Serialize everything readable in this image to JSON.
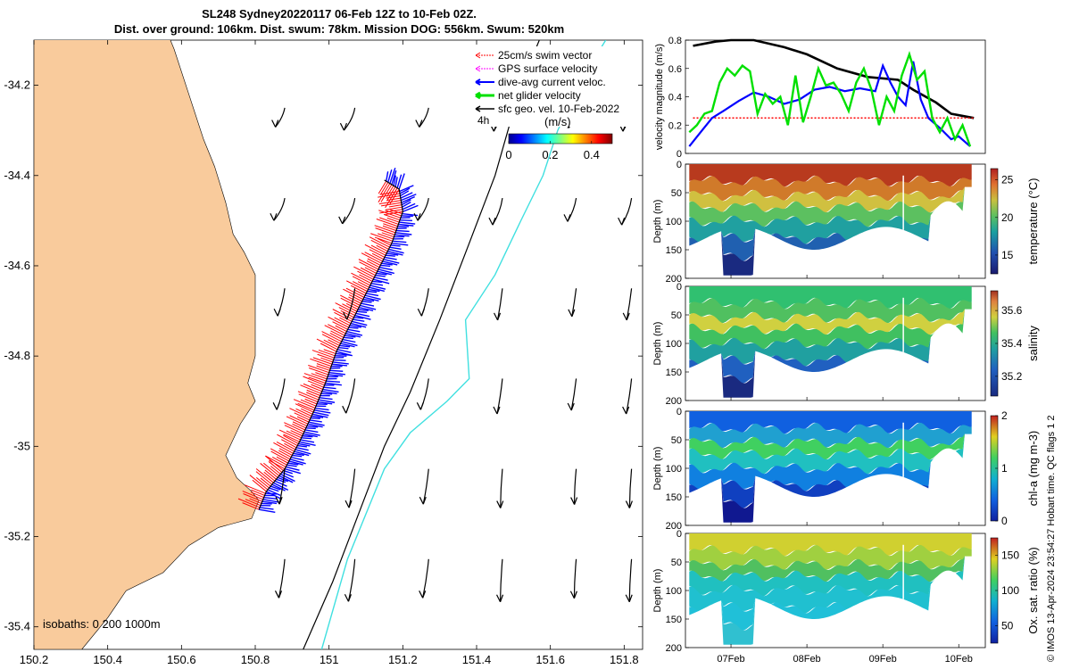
{
  "title_line1": "SL248 Sydney20220117 06-Feb 12Z to 10-Feb 02Z.",
  "title_line2": "Dist. over ground: 106km. Dist. swum: 78km. Mission DOG: 556km. Swum: 520km",
  "side_note": "© IMOS 13-Apr-2024 23:54:27 Hobart time. QC flags 1  2",
  "colors": {
    "land": "#F9CB9C",
    "red": "#FF0000",
    "blue": "#0000FF",
    "green": "#00E000",
    "magenta": "#FF00FF",
    "black": "#000000",
    "cyan": "#40E0E0"
  },
  "chart_data": [
    {
      "type": "scatter",
      "name": "map",
      "xlim": [
        150.2,
        151.85
      ],
      "ylim": [
        -35.45,
        -34.1
      ],
      "x_ticks": [
        "150.2",
        "150.4",
        "150.6",
        "150.8",
        "151",
        "151.2",
        "151.4",
        "151.6",
        "151.8"
      ],
      "x_tick_values": [
        150.2,
        150.4,
        150.6,
        150.8,
        151,
        151.2,
        151.4,
        151.6,
        151.8
      ],
      "y_ticks": [
        "-34.2",
        "-34.4",
        "-34.6",
        "-34.8",
        "-35",
        "-35.2",
        "-35.4"
      ],
      "y_tick_values": [
        -34.2,
        -34.4,
        -34.6,
        -34.8,
        -35,
        -35.2,
        -35.4
      ],
      "legend": {
        "position": "top-right",
        "items": [
          "25cm/s swim vector",
          "GPS surface velocity",
          "dive-avg current veloc.",
          "net glider velocity",
          "sfc geo. vel. 10-Feb-2022"
        ],
        "scale_label": "4h"
      },
      "colorbar": {
        "label": "(m/s)",
        "ticks": [
          "0",
          "0.2",
          "0.4"
        ],
        "tick_values": [
          0,
          0.2,
          0.4
        ],
        "range": [
          0,
          0.5
        ]
      },
      "isobaths_label": "isobaths: 0   200  1000m",
      "glider_track": [
        [
          150.81,
          -35.14
        ],
        [
          150.83,
          -35.1
        ],
        [
          150.88,
          -35.05
        ],
        [
          150.92,
          -34.99
        ],
        [
          150.96,
          -34.92
        ],
        [
          150.99,
          -34.86
        ],
        [
          151.02,
          -34.79
        ],
        [
          151.07,
          -34.71
        ],
        [
          151.12,
          -34.63
        ],
        [
          151.17,
          -34.55
        ],
        [
          151.2,
          -34.48
        ],
        [
          151.19,
          -34.43
        ],
        [
          151.15,
          -34.41
        ]
      ],
      "coastline": [
        [
          150.2,
          -34.06
        ],
        [
          150.55,
          -34.06
        ],
        [
          150.58,
          -34.12
        ],
        [
          150.62,
          -34.22
        ],
        [
          150.66,
          -34.32
        ],
        [
          150.69,
          -34.38
        ],
        [
          150.72,
          -34.46
        ],
        [
          150.74,
          -34.53
        ],
        [
          150.77,
          -34.57
        ],
        [
          150.8,
          -34.62
        ],
        [
          150.8,
          -34.72
        ],
        [
          150.8,
          -34.8
        ],
        [
          150.78,
          -34.86
        ],
        [
          150.8,
          -34.9
        ],
        [
          150.76,
          -34.95
        ],
        [
          150.72,
          -35.02
        ],
        [
          150.75,
          -35.07
        ],
        [
          150.79,
          -35.1
        ],
        [
          150.81,
          -35.12
        ],
        [
          150.79,
          -35.16
        ],
        [
          150.7,
          -35.18
        ],
        [
          150.62,
          -35.22
        ],
        [
          150.55,
          -35.28
        ],
        [
          150.45,
          -35.32
        ],
        [
          150.4,
          -35.38
        ],
        [
          150.33,
          -35.45
        ],
        [
          150.2,
          -35.45
        ]
      ],
      "isobath_200": [
        [
          150.93,
          -35.45
        ],
        [
          151.01,
          -35.3
        ],
        [
          151.08,
          -35.15
        ],
        [
          151.15,
          -35.0
        ],
        [
          151.22,
          -34.88
        ],
        [
          151.3,
          -34.72
        ],
        [
          151.38,
          -34.55
        ],
        [
          151.45,
          -34.4
        ],
        [
          151.52,
          -34.2
        ],
        [
          151.57,
          -34.1
        ]
      ],
      "isobath_1000": [
        [
          150.98,
          -35.45
        ],
        [
          151.05,
          -35.25
        ],
        [
          151.15,
          -35.05
        ],
        [
          151.22,
          -34.97
        ],
        [
          151.32,
          -34.9
        ],
        [
          151.38,
          -34.85
        ],
        [
          151.37,
          -34.72
        ],
        [
          151.45,
          -34.62
        ],
        [
          151.52,
          -34.5
        ],
        [
          151.58,
          -34.4
        ],
        [
          151.62,
          -34.3
        ],
        [
          151.69,
          -34.18
        ],
        [
          151.75,
          -34.1
        ]
      ],
      "current_arrows_grid_x": [
        150.88,
        151.07,
        151.27,
        151.47,
        151.67,
        151.82
      ],
      "current_arrows_grid_y": [
        -34.25,
        -34.45,
        -34.65,
        -34.85,
        -35.05,
        -35.25
      ]
    },
    {
      "type": "line",
      "name": "velocity-magnitude",
      "ylabel": "velocity magnitude (m/s)",
      "ylim": [
        0,
        0.8
      ],
      "y_ticks": [
        "0",
        "0.2",
        "0.4",
        "0.6",
        "0.8"
      ],
      "y_tick_values": [
        0,
        0.2,
        0.4,
        0.6,
        0.8
      ],
      "xlim": [
        6.4,
        10.35
      ],
      "series": [
        {
          "color": "black",
          "values": [
            [
              6.5,
              0.76
            ],
            [
              6.8,
              0.79
            ],
            [
              7.0,
              0.8
            ],
            [
              7.3,
              0.8
            ],
            [
              7.7,
              0.75
            ],
            [
              8.0,
              0.7
            ],
            [
              8.4,
              0.6
            ],
            [
              8.8,
              0.54
            ],
            [
              9.2,
              0.52
            ],
            [
              9.4,
              0.45
            ],
            [
              9.7,
              0.36
            ],
            [
              9.9,
              0.28
            ],
            [
              10.2,
              0.25
            ]
          ]
        },
        {
          "color": "red",
          "values": [
            [
              6.5,
              0.25
            ],
            [
              10.2,
              0.25
            ]
          ]
        },
        {
          "color": "blue",
          "values": [
            [
              6.45,
              0.05
            ],
            [
              6.6,
              0.15
            ],
            [
              6.75,
              0.25
            ],
            [
              6.9,
              0.3
            ],
            [
              7.1,
              0.37
            ],
            [
              7.3,
              0.43
            ],
            [
              7.5,
              0.4
            ],
            [
              7.7,
              0.35
            ],
            [
              7.9,
              0.38
            ],
            [
              8.1,
              0.45
            ],
            [
              8.3,
              0.47
            ],
            [
              8.5,
              0.44
            ],
            [
              8.7,
              0.46
            ],
            [
              8.9,
              0.44
            ],
            [
              9.0,
              0.62
            ],
            [
              9.1,
              0.5
            ],
            [
              9.2,
              0.4
            ],
            [
              9.3,
              0.34
            ],
            [
              9.4,
              0.65
            ],
            [
              9.5,
              0.38
            ],
            [
              9.6,
              0.25
            ],
            [
              9.75,
              0.18
            ],
            [
              9.9,
              0.1
            ],
            [
              10.0,
              0.12
            ],
            [
              10.15,
              0.05
            ]
          ]
        },
        {
          "color": "green",
          "values": [
            [
              6.45,
              0.15
            ],
            [
              6.55,
              0.2
            ],
            [
              6.65,
              0.28
            ],
            [
              6.75,
              0.3
            ],
            [
              6.85,
              0.5
            ],
            [
              6.95,
              0.6
            ],
            [
              7.05,
              0.55
            ],
            [
              7.15,
              0.62
            ],
            [
              7.25,
              0.58
            ],
            [
              7.35,
              0.28
            ],
            [
              7.45,
              0.42
            ],
            [
              7.55,
              0.35
            ],
            [
              7.65,
              0.4
            ],
            [
              7.75,
              0.2
            ],
            [
              7.85,
              0.55
            ],
            [
              7.95,
              0.22
            ],
            [
              8.05,
              0.4
            ],
            [
              8.15,
              0.6
            ],
            [
              8.25,
              0.48
            ],
            [
              8.35,
              0.5
            ],
            [
              8.45,
              0.42
            ],
            [
              8.55,
              0.3
            ],
            [
              8.65,
              0.5
            ],
            [
              8.75,
              0.6
            ],
            [
              8.85,
              0.45
            ],
            [
              8.95,
              0.2
            ],
            [
              9.05,
              0.4
            ],
            [
              9.15,
              0.3
            ],
            [
              9.25,
              0.55
            ],
            [
              9.35,
              0.7
            ],
            [
              9.45,
              0.52
            ],
            [
              9.55,
              0.58
            ],
            [
              9.65,
              0.25
            ],
            [
              9.75,
              0.15
            ],
            [
              9.85,
              0.25
            ],
            [
              9.95,
              0.1
            ],
            [
              10.05,
              0.2
            ],
            [
              10.15,
              0.05
            ]
          ]
        }
      ]
    },
    {
      "type": "heatmap",
      "name": "temperature",
      "ylabel": "Depth (m)",
      "y_ticks": [
        "0",
        "50",
        "100",
        "150",
        "200"
      ],
      "y_tick_values": [
        0,
        50,
        100,
        150,
        200
      ],
      "colorbar_label": "temperature (°C)",
      "colorbar_ticks": [
        "15",
        "20",
        "25"
      ],
      "colorbar_tick_values": [
        15,
        20,
        25
      ],
      "colorbar_range": [
        12.5,
        26.5
      ],
      "colormap": "thermal"
    },
    {
      "type": "heatmap",
      "name": "salinity",
      "ylabel": "Depth (m)",
      "y_ticks": [
        "0",
        "50",
        "100",
        "150",
        "200"
      ],
      "y_tick_values": [
        0,
        50,
        100,
        150,
        200
      ],
      "colorbar_label": "salinity",
      "colorbar_ticks": [
        "35.2",
        "35.4",
        "35.6"
      ],
      "colorbar_tick_values": [
        35.2,
        35.4,
        35.6
      ],
      "colorbar_range": [
        35.08,
        35.72
      ],
      "colormap": "haline"
    },
    {
      "type": "heatmap",
      "name": "chl-a",
      "ylabel": "Depth (m)",
      "y_ticks": [
        "0",
        "50",
        "100",
        "150",
        "200"
      ],
      "y_tick_values": [
        0,
        50,
        100,
        150,
        200
      ],
      "colorbar_label": "chl-a (mg m-3)",
      "colorbar_ticks": [
        "0",
        "1",
        "2"
      ],
      "colorbar_tick_values": [
        0,
        1,
        2
      ],
      "colorbar_range": [
        0,
        2
      ],
      "colormap": "parula"
    },
    {
      "type": "heatmap",
      "name": "oxygen",
      "ylabel": "Depth (m)",
      "y_ticks": [
        "0",
        "50",
        "100",
        "150",
        "200"
      ],
      "y_tick_values": [
        0,
        50,
        100,
        150,
        200
      ],
      "colorbar_label": "Ox. sat. ratio (%)",
      "colorbar_ticks": [
        "50",
        "100",
        "150"
      ],
      "colorbar_tick_values": [
        50,
        100,
        150
      ],
      "colorbar_range": [
        25,
        175
      ],
      "colormap": "parula",
      "x_ticks": [
        "07Feb",
        "08Feb",
        "09Feb",
        "10Feb"
      ],
      "x_tick_values": [
        7,
        8,
        9,
        10
      ]
    }
  ]
}
